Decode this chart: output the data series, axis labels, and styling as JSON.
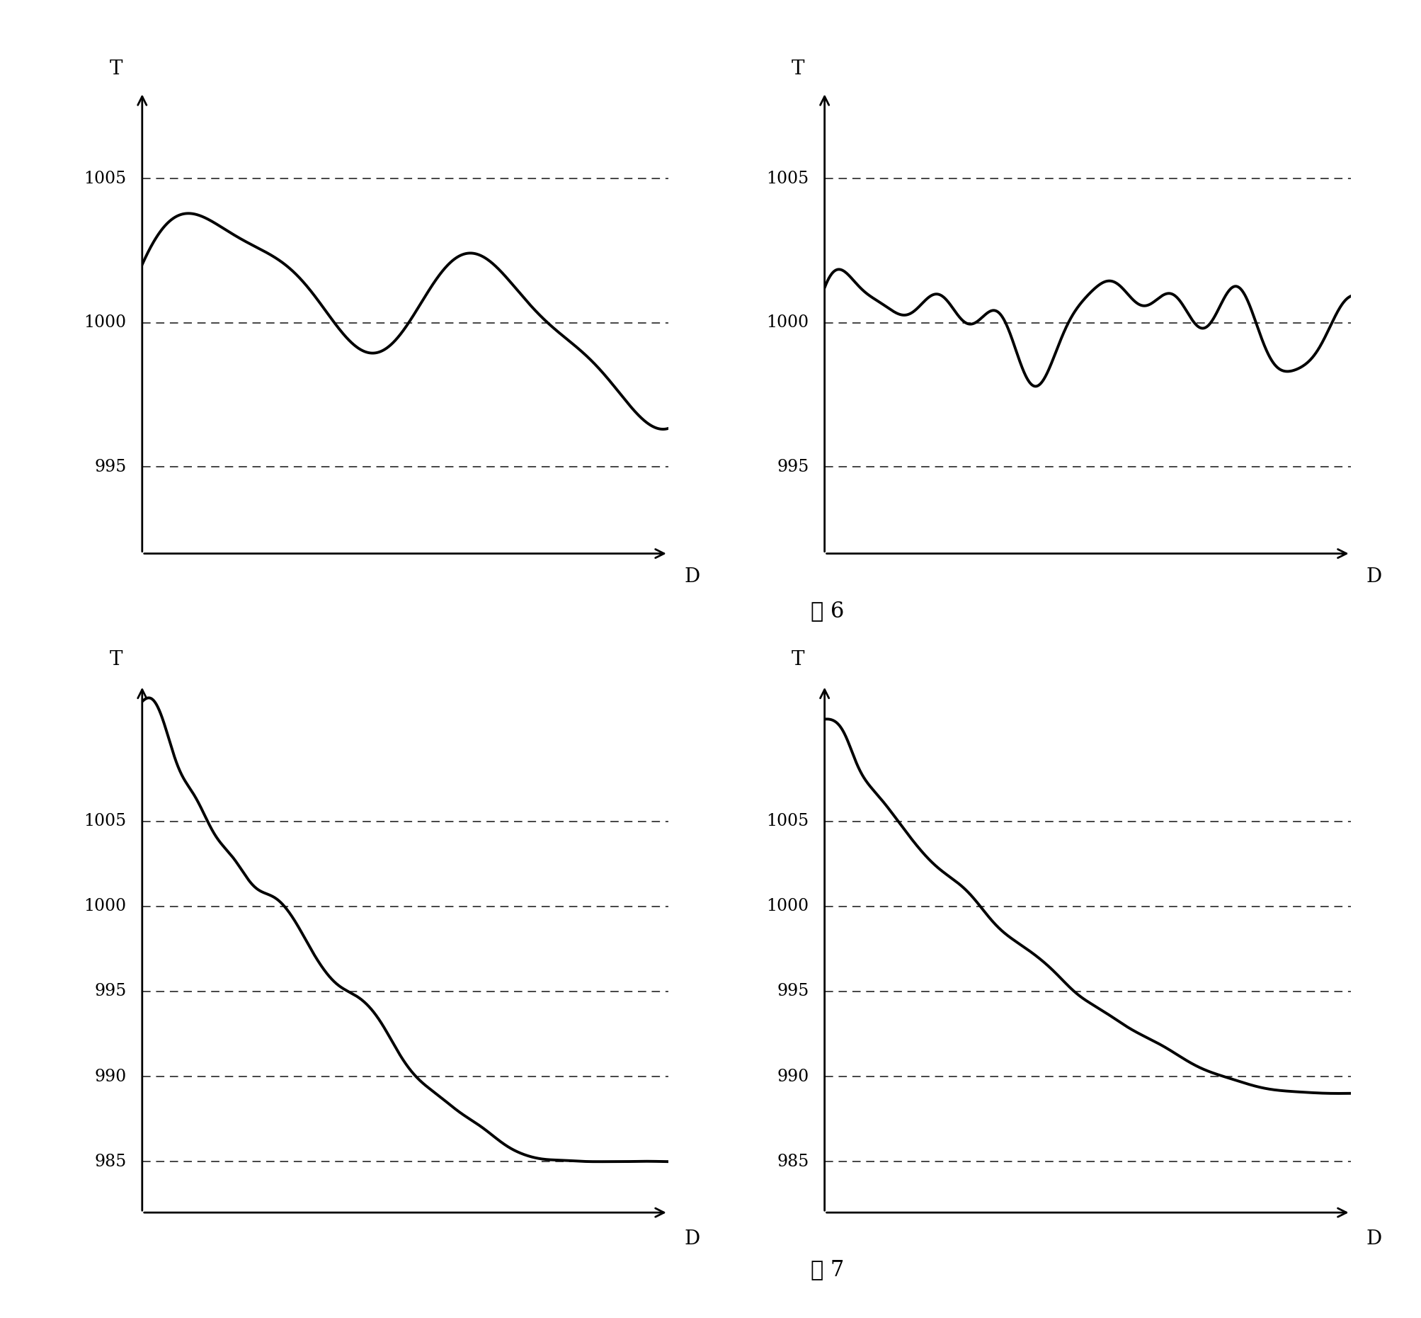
{
  "fig_width": 20.08,
  "fig_height": 18.61,
  "background_color": "#ffffff",
  "top_left": {
    "yticks": [
      995,
      1000,
      1005
    ],
    "ylabel": "T",
    "xlabel": "D",
    "hline_values": [
      995,
      1000,
      1005
    ],
    "ymin": 992,
    "ymax": 1008,
    "yplot_min": 994,
    "yplot_max": 1007
  },
  "top_right": {
    "yticks": [
      995,
      1000,
      1005
    ],
    "ylabel": "T",
    "xlabel": "D",
    "hline_values": [
      995,
      1000,
      1005
    ],
    "ymin": 992,
    "ymax": 1008,
    "caption": "图 6"
  },
  "bottom_left": {
    "yticks": [
      985,
      990,
      995,
      1000,
      1005
    ],
    "ylabel": "T",
    "xlabel": "D",
    "hline_values": [
      985,
      990,
      995,
      1000,
      1005
    ],
    "ymin": 982,
    "ymax": 1013
  },
  "bottom_right": {
    "yticks": [
      985,
      990,
      995,
      1000,
      1005
    ],
    "ylabel": "T",
    "xlabel": "D",
    "hline_values": [
      985,
      990,
      995,
      1000,
      1005
    ],
    "ymin": 982,
    "ymax": 1013,
    "caption": "图 7"
  },
  "line_color": "#000000",
  "line_width": 2.8,
  "dashed_color": "#444444",
  "dashed_lw": 1.4,
  "tick_fontsize": 17,
  "label_fontsize": 20,
  "caption_fontsize": 22
}
